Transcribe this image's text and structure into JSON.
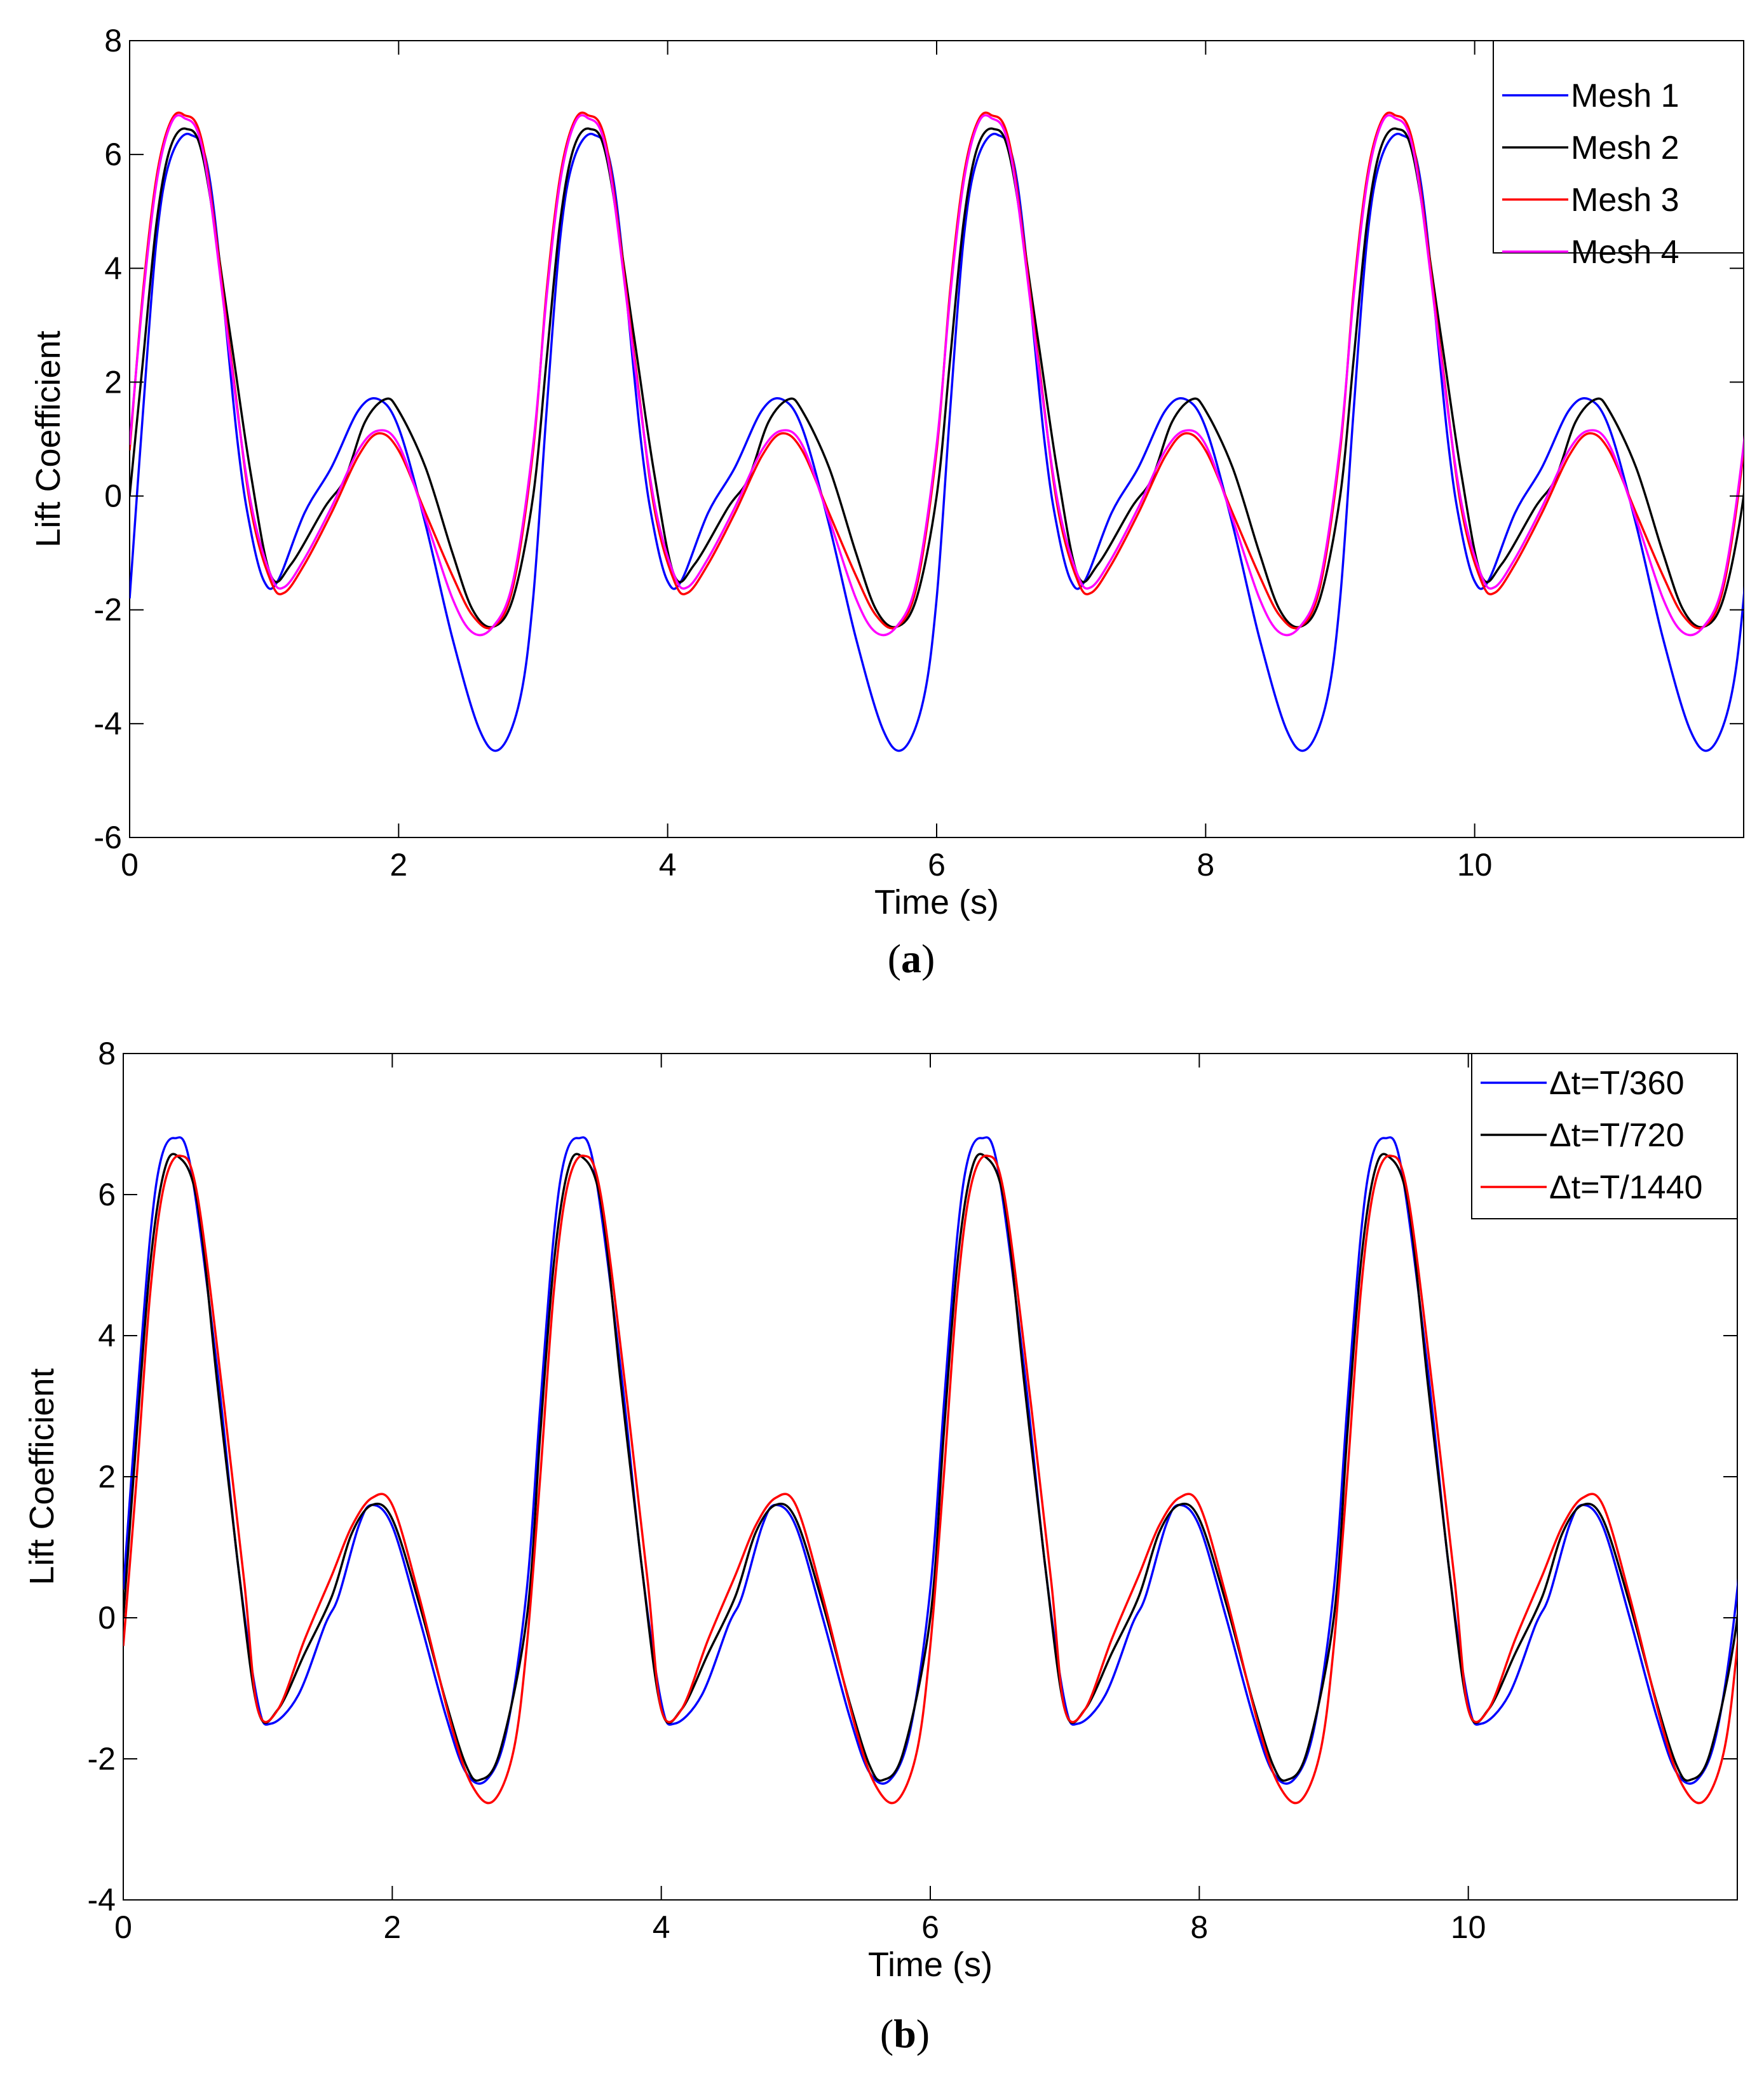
{
  "figure": {
    "captions": [
      "(a)",
      "(b)"
    ]
  },
  "chart_data": [
    {
      "type": "line",
      "panel": "a",
      "caption_letter": "a",
      "title": "",
      "xlabel": "Time (s)",
      "ylabel": "Lift Coefficient",
      "xlim": [
        0,
        12
      ],
      "ylim": [
        -6,
        8
      ],
      "xticks": [
        0,
        2,
        4,
        6,
        8,
        10
      ],
      "yticks": [
        -6,
        -4,
        -2,
        0,
        2,
        4,
        6,
        8
      ],
      "grid": false,
      "legend_position": "top-right",
      "period": 3.0,
      "series": [
        {
          "name": "Mesh 1",
          "color": "#0000ff",
          "x": [
            0,
            0.1,
            0.2,
            0.3,
            0.45,
            0.6,
            0.8,
            0.9,
            1.0,
            1.1,
            1.3,
            1.5,
            1.7,
            1.85,
            2.0,
            2.2,
            2.4,
            2.6,
            2.75,
            2.9,
            3.0
          ],
          "y": [
            -1.8,
            1.5,
            4.5,
            5.9,
            6.35,
            5.5,
            1.0,
            -0.6,
            -1.5,
            -1.5,
            -0.3,
            0.5,
            1.5,
            1.7,
            1.2,
            -0.5,
            -2.5,
            -4.1,
            -4.45,
            -3.6,
            -1.8
          ]
        },
        {
          "name": "Mesh 2",
          "color": "#000000",
          "x": [
            0,
            0.1,
            0.2,
            0.3,
            0.42,
            0.55,
            0.75,
            0.9,
            1.05,
            1.2,
            1.45,
            1.6,
            1.75,
            1.9,
            2.0,
            2.2,
            2.4,
            2.55,
            2.7,
            2.85,
            3.0
          ],
          "y": [
            0.0,
            2.4,
            4.8,
            6.1,
            6.45,
            5.9,
            2.8,
            0.4,
            -1.4,
            -1.2,
            -0.2,
            0.3,
            1.3,
            1.7,
            1.5,
            0.5,
            -1.0,
            -2.0,
            -2.3,
            -1.8,
            0.0
          ]
        },
        {
          "name": "Mesh 3",
          "color": "#ff0000",
          "x": [
            0,
            0.1,
            0.2,
            0.3,
            0.4,
            0.55,
            0.75,
            0.9,
            1.05,
            1.15,
            1.3,
            1.5,
            1.7,
            1.85,
            2.0,
            2.2,
            2.4,
            2.55,
            2.7,
            2.85,
            3.0
          ],
          "y": [
            0.8,
            3.6,
            5.6,
            6.55,
            6.7,
            6.1,
            2.5,
            -0.2,
            -1.5,
            -1.7,
            -1.2,
            -0.3,
            0.7,
            1.1,
            0.8,
            -0.3,
            -1.4,
            -2.1,
            -2.3,
            -1.6,
            0.8
          ]
        },
        {
          "name": "Mesh 4",
          "color": "#ff00ff",
          "x": [
            0,
            0.1,
            0.2,
            0.3,
            0.4,
            0.55,
            0.75,
            0.9,
            1.05,
            1.15,
            1.3,
            1.5,
            1.7,
            1.85,
            2.0,
            2.2,
            2.4,
            2.55,
            2.7,
            2.85,
            3.0
          ],
          "y": [
            0.9,
            3.5,
            5.5,
            6.5,
            6.65,
            6.0,
            2.4,
            -0.1,
            -1.4,
            -1.6,
            -1.1,
            -0.2,
            0.8,
            1.15,
            0.9,
            -0.4,
            -1.8,
            -2.4,
            -2.3,
            -1.5,
            0.9
          ]
        }
      ]
    },
    {
      "type": "line",
      "panel": "b",
      "caption_letter": "b",
      "title": "",
      "xlabel": "Time (s)",
      "ylabel": "Lift Coefficient",
      "xlim": [
        0,
        12
      ],
      "ylim": [
        -4,
        8
      ],
      "xticks": [
        0,
        2,
        4,
        6,
        8,
        10
      ],
      "yticks": [
        -4,
        -2,
        0,
        2,
        4,
        6,
        8
      ],
      "grid": false,
      "legend_position": "top-right",
      "period": 3.0,
      "series": [
        {
          "name": "Δt=T/360",
          "color": "#0000ff",
          "x": [
            0,
            0.1,
            0.2,
            0.28,
            0.38,
            0.5,
            0.7,
            0.85,
            1.0,
            1.1,
            1.3,
            1.5,
            1.6,
            1.75,
            1.85,
            2.0,
            2.2,
            2.4,
            2.55,
            2.7,
            2.85,
            3.0
          ],
          "y": [
            0.4,
            3.0,
            5.4,
            6.5,
            6.8,
            6.4,
            3.5,
            0.8,
            -1.2,
            -1.5,
            -1.1,
            -0.1,
            0.3,
            1.3,
            1.6,
            1.3,
            0.0,
            -1.4,
            -2.2,
            -2.3,
            -1.6,
            0.4
          ]
        },
        {
          "name": "Δt=T/720",
          "color": "#000000",
          "x": [
            0,
            0.1,
            0.2,
            0.3,
            0.4,
            0.55,
            0.7,
            0.85,
            1.0,
            1.15,
            1.35,
            1.55,
            1.7,
            1.85,
            2.0,
            2.2,
            2.4,
            2.55,
            2.65,
            2.8,
            3.0
          ],
          "y": [
            0.0,
            2.6,
            5.0,
            6.3,
            6.55,
            5.9,
            3.3,
            0.8,
            -1.3,
            -1.3,
            -0.5,
            0.3,
            1.2,
            1.6,
            1.4,
            0.2,
            -1.2,
            -2.1,
            -2.3,
            -1.9,
            0.0
          ]
        },
        {
          "name": "Δt=T/1440",
          "color": "#ff0000",
          "x": [
            0,
            0.1,
            0.2,
            0.3,
            0.42,
            0.55,
            0.75,
            0.9,
            1.0,
            1.15,
            1.35,
            1.55,
            1.7,
            1.85,
            2.0,
            2.2,
            2.45,
            2.6,
            2.75,
            2.9,
            3.0
          ],
          "y": [
            -0.4,
            2.0,
            4.6,
            6.1,
            6.55,
            6.0,
            3.0,
            0.5,
            -1.3,
            -1.3,
            -0.3,
            0.6,
            1.3,
            1.7,
            1.6,
            0.3,
            -1.6,
            -2.4,
            -2.6,
            -1.9,
            -0.4
          ]
        }
      ]
    }
  ]
}
